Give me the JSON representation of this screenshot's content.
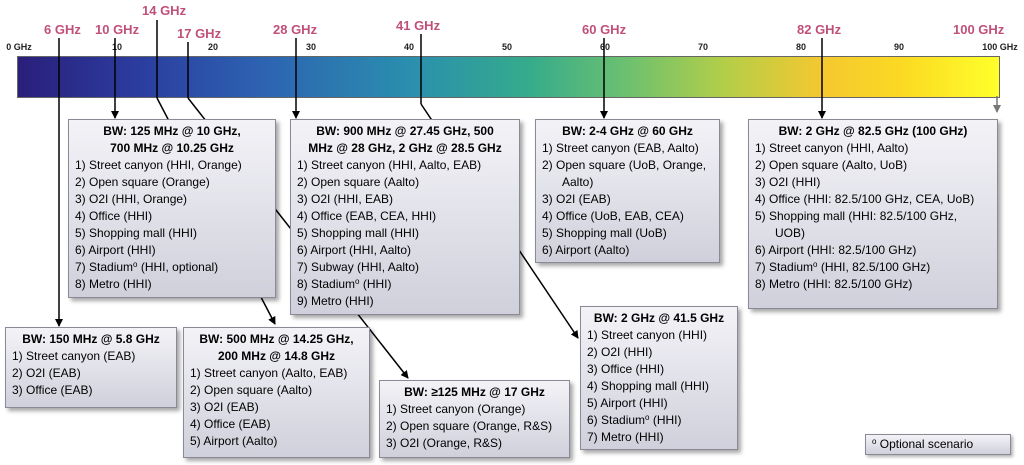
{
  "frequencies": [
    "6 GHz",
    "10 GHz",
    "14 GHz",
    "17 GHz",
    "28 GHz",
    "41 GHz",
    "60 GHz",
    "82 GHz",
    "100 GHz"
  ],
  "scale": {
    "ticks": [
      "0 GHz",
      "10",
      "20",
      "30",
      "40",
      "50",
      "60",
      "70",
      "80",
      "90",
      "100 GHz"
    ],
    "min": 0,
    "max": 100,
    "unit": "GHz"
  },
  "boxes": {
    "b10": {
      "title_l1": "BW: 125 MHz @ 10 GHz,",
      "title_l2": "700 MHz @ 10.25 GHz",
      "items": [
        "1) Street canyon (HHI, Orange)",
        "2) Open square (Orange)",
        "3) O2I (HHI, Orange)",
        "4) Office (HHI)",
        "5) Shopping mall (HHI)",
        "6) Airport (HHI)",
        "7) Stadium",
        "8) Metro (HHI)"
      ],
      "item7_suffix": " (HHI, optional)"
    },
    "b28": {
      "title_l1": "BW: 900 MHz @ 27.45 GHz, 500",
      "title_l2": "MHz @ 28 GHz, 2 GHz @ 28.5 GHz",
      "items": [
        "1) Street canyon (HHI, Aalto, EAB)",
        "2) Open square (Aalto)",
        "3) O2I (HHI, EAB)",
        "4) Office (EAB, CEA, HHI)",
        "5) Shopping mall (HHI)",
        "6) Airport (HHI, Aalto)",
        "7) Subway (HHI, Aalto)",
        "8) Stadium",
        "9) Metro (HHI)"
      ],
      "item8_suffix": " (HHI)"
    },
    "b60": {
      "title": "BW: 2-4 GHz @ 60 GHz",
      "items": [
        "1) Street canyon (EAB, Aalto)",
        "2) Open square (UoB, Orange,",
        "Aalto)",
        "3) O2I (EAB)",
        "4) Office (UoB, EAB, CEA)",
        "5) Shopping mall (UoB)",
        "6) Airport (Aalto)"
      ]
    },
    "b82": {
      "title": "BW: 2 GHz @ 82.5 GHz (100 GHz)",
      "items": [
        "1) Street canyon (HHI, Aalto)",
        "2) Open square (Aalto, UoB)",
        "3) O2I (HHI)",
        "4) Office (HHI: 82.5/100 GHz, CEA, UoB)",
        "5) Shopping mall (HHI: 82.5/100 GHz,",
        "UOB)",
        "6) Airport (HHI: 82.5/100 GHz)",
        "7) Stadium",
        "8) Metro (HHI: 82.5/100 GHz)"
      ],
      "item7_suffix": " (HHI, 82.5/100 GHz)"
    },
    "b6": {
      "title": "BW: 150 MHz @ 5.8 GHz",
      "items": [
        "1) Street canyon (EAB)",
        "2) O2I (EAB)",
        "3) Office (EAB)"
      ]
    },
    "b14": {
      "title_l1": "BW: 500 MHz @ 14.25 GHz,",
      "title_l2": "200 MHz @ 14.8 GHz",
      "items": [
        "1) Street canyon (Aalto, EAB)",
        "2) Open square (Aalto)",
        "3) O2I (EAB)",
        "4) Office (EAB)",
        "5) Airport (Aalto)"
      ]
    },
    "b17": {
      "title": "BW: ≥125 MHz @ 17 GHz",
      "items": [
        "1) Street canyon (Orange)",
        "2) Open square (Orange, R&S)",
        "3) O2I (Orange, R&S)"
      ]
    },
    "b41": {
      "title": "BW: 2 GHz @ 41.5 GHz",
      "items": [
        "1) Street canyon (HHI)",
        "2) O2I (HHI)",
        "3) Office (HHI)",
        "4) Shopping mall (HHI)",
        "5) Airport (HHI)",
        "6) Stadium",
        "7) Metro (HHI)"
      ],
      "item6_suffix": " (HHI)"
    }
  },
  "legend": {
    "marker": "o",
    "text": " Optional scenario"
  }
}
